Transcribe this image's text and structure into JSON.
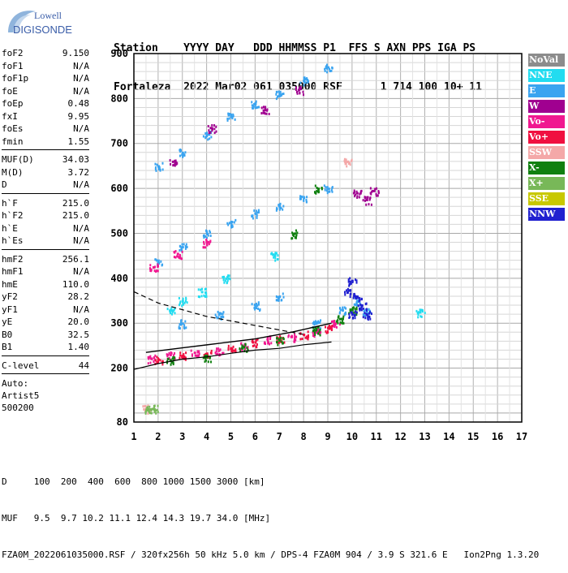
{
  "logo": {
    "line1": "Lowell",
    "line2": "DIGISONDE"
  },
  "header": {
    "line1": "Station    YYYY DAY   DDD HHMMSS P1  FFS S AXN PPS IGA PS",
    "line2": "Fortaleza  2022 Mar02 061 035000 RSF      1 714 100 10+ 11"
  },
  "params": [
    {
      "group": [
        {
          "name": "foF2",
          "value": "9.150"
        },
        {
          "name": "foF1",
          "value": "N/A"
        },
        {
          "name": "foF1p",
          "value": "N/A"
        },
        {
          "name": "foE",
          "value": "N/A"
        },
        {
          "name": "foEp",
          "value": "0.48"
        },
        {
          "name": "fxI",
          "value": "9.95"
        },
        {
          "name": "foEs",
          "value": "N/A"
        },
        {
          "name": "fmin",
          "value": "1.55"
        }
      ]
    },
    {
      "group": [
        {
          "name": "MUF(D)",
          "value": "34.03"
        },
        {
          "name": "M(D)",
          "value": "3.72"
        },
        {
          "name": "D",
          "value": "N/A"
        }
      ]
    },
    {
      "group": [
        {
          "name": "h`F",
          "value": "215.0"
        },
        {
          "name": "h`F2",
          "value": "215.0"
        },
        {
          "name": "h`E",
          "value": "N/A"
        },
        {
          "name": "h`Es",
          "value": "N/A"
        }
      ]
    },
    {
      "group": [
        {
          "name": "hmF2",
          "value": "256.1"
        },
        {
          "name": "hmF1",
          "value": "N/A"
        },
        {
          "name": "hmE",
          "value": "110.0"
        },
        {
          "name": "yF2",
          "value": "28.2"
        },
        {
          "name": "yF1",
          "value": "N/A"
        },
        {
          "name": "yE",
          "value": "20.0"
        },
        {
          "name": "B0",
          "value": "32.5"
        },
        {
          "name": "B1",
          "value": "1.40"
        }
      ]
    },
    {
      "group": [
        {
          "name": "C-level",
          "value": "44"
        }
      ]
    }
  ],
  "auto": {
    "label": "Auto:",
    "software": "Artist5",
    "version": "500200"
  },
  "legend": [
    {
      "label": "NoVal",
      "color": "#8c8c8c"
    },
    {
      "label": "NNE",
      "color": "#22dcf0"
    },
    {
      "label": "E",
      "color": "#3aa4f0"
    },
    {
      "label": "W",
      "color": "#a00090"
    },
    {
      "label": "Vo-",
      "color": "#f01890"
    },
    {
      "label": "Vo+",
      "color": "#f01040"
    },
    {
      "label": "SSW",
      "color": "#f4a8a8"
    },
    {
      "label": "X-",
      "color": "#108010"
    },
    {
      "label": "X+",
      "color": "#78b858"
    },
    {
      "label": "SSE",
      "color": "#c8c800"
    },
    {
      "label": "NNW",
      "color": "#2020d0"
    }
  ],
  "footer": {
    "line1": "D     100  200  400  600  800 1000 1500 3000 [km]",
    "line2": "MUF   9.5  9.7 10.2 11.1 12.4 14.3 19.7 34.0 [MHz]",
    "line3": "FZA0M_2022061035000.RSF / 320fx256h 50 kHz 5.0 km / DPS-4 FZA0M 904 / 3.9 S 321.6 E   Ion2Png 1.3.20"
  },
  "chart_data": {
    "type": "scatter",
    "xlabel": "",
    "ylabel": "",
    "xlim": [
      1,
      17
    ],
    "ylim": [
      80,
      900
    ],
    "xticks": [
      "1",
      "2",
      "3",
      "4",
      "5",
      "6",
      "7",
      "8",
      "9",
      "10",
      "11",
      "12",
      "13",
      "14",
      "15",
      "16",
      "17"
    ],
    "yticks": [
      "80",
      "200",
      "300",
      "400",
      "500",
      "600",
      "700",
      "800",
      "900"
    ],
    "grid": true,
    "series": [
      {
        "name": "E",
        "color": "#3aa4f0",
        "points": [
          [
            2.0,
            650
          ],
          [
            3.0,
            680
          ],
          [
            4.0,
            720
          ],
          [
            5.0,
            760
          ],
          [
            6.0,
            790
          ],
          [
            7.0,
            810
          ],
          [
            8.0,
            840
          ],
          [
            9.0,
            870
          ],
          [
            2.0,
            440
          ],
          [
            3.0,
            470
          ],
          [
            4.0,
            500
          ],
          [
            5.0,
            525
          ],
          [
            6.0,
            545
          ],
          [
            7.0,
            560
          ],
          [
            8.0,
            580
          ],
          [
            9.0,
            600
          ],
          [
            3.0,
            300
          ],
          [
            4.5,
            320
          ],
          [
            6.0,
            340
          ],
          [
            7.0,
            360
          ],
          [
            8.5,
            300
          ],
          [
            9.6,
            330
          ],
          [
            10.2,
            350
          ],
          [
            10.6,
            325
          ]
        ]
      },
      {
        "name": "W",
        "color": "#a00090",
        "points": [
          [
            2.6,
            660
          ],
          [
            4.2,
            735
          ],
          [
            6.4,
            775
          ],
          [
            7.8,
            820
          ],
          [
            10.2,
            590
          ],
          [
            10.6,
            575
          ],
          [
            10.9,
            595
          ]
        ]
      },
      {
        "name": "Vo-",
        "color": "#f01890",
        "points": [
          [
            1.7,
            222
          ],
          [
            2.5,
            230
          ],
          [
            3.5,
            235
          ],
          [
            4.5,
            240
          ],
          [
            5.5,
            250
          ],
          [
            6.5,
            265
          ],
          [
            7.5,
            270
          ],
          [
            8.5,
            280
          ],
          [
            9.3,
            300
          ],
          [
            1.8,
            425
          ],
          [
            2.8,
            455
          ],
          [
            4.0,
            480
          ]
        ]
      },
      {
        "name": "Vo+",
        "color": "#f01040",
        "points": [
          [
            2.0,
            220
          ],
          [
            3.0,
            228
          ],
          [
            4.0,
            233
          ],
          [
            5.0,
            245
          ],
          [
            6.0,
            258
          ],
          [
            7.0,
            268
          ],
          [
            8.0,
            275
          ],
          [
            9.0,
            290
          ]
        ]
      },
      {
        "name": "X-",
        "color": "#108010",
        "points": [
          [
            2.5,
            218
          ],
          [
            4.0,
            225
          ],
          [
            5.5,
            248
          ],
          [
            7.0,
            262
          ],
          [
            8.5,
            285
          ],
          [
            9.5,
            310
          ],
          [
            10.0,
            330
          ],
          [
            7.6,
            500
          ],
          [
            8.6,
            600
          ]
        ]
      },
      {
        "name": "NNW",
        "color": "#2020d0",
        "points": [
          [
            9.8,
            370
          ],
          [
            10.0,
            395
          ],
          [
            10.2,
            360
          ],
          [
            10.4,
            340
          ],
          [
            10.6,
            320
          ],
          [
            10.0,
            320
          ]
        ]
      },
      {
        "name": "NNE",
        "color": "#22dcf0",
        "points": [
          [
            2.5,
            330
          ],
          [
            3.0,
            350
          ],
          [
            3.8,
            370
          ],
          [
            4.8,
            400
          ],
          [
            12.8,
            325
          ],
          [
            6.8,
            450
          ]
        ]
      },
      {
        "name": "SSW",
        "color": "#f4a8a8",
        "points": [
          [
            1.5,
            110
          ],
          [
            9.8,
            660
          ]
        ]
      },
      {
        "name": "X+",
        "color": "#78b858",
        "points": [
          [
            1.6,
            108
          ],
          [
            1.8,
            110
          ]
        ]
      }
    ],
    "traces": {
      "profile": [
        [
          1.0,
          197
        ],
        [
          2.0,
          210
        ],
        [
          3.0,
          220
        ],
        [
          4.0,
          225
        ],
        [
          5.0,
          233
        ],
        [
          6.0,
          240
        ],
        [
          7.0,
          244
        ],
        [
          8.0,
          252
        ],
        [
          9.15,
          258
        ]
      ],
      "dashed": [
        [
          1.0,
          370
        ],
        [
          2.0,
          345
        ],
        [
          3.0,
          330
        ],
        [
          4.0,
          315
        ],
        [
          5.0,
          305
        ],
        [
          6.0,
          295
        ],
        [
          7.0,
          285
        ],
        [
          8.0,
          275
        ]
      ],
      "virtual": [
        [
          1.5,
          235
        ],
        [
          3.0,
          245
        ],
        [
          4.5,
          255
        ],
        [
          6.0,
          265
        ],
        [
          7.5,
          280
        ],
        [
          9.15,
          300
        ]
      ]
    }
  }
}
